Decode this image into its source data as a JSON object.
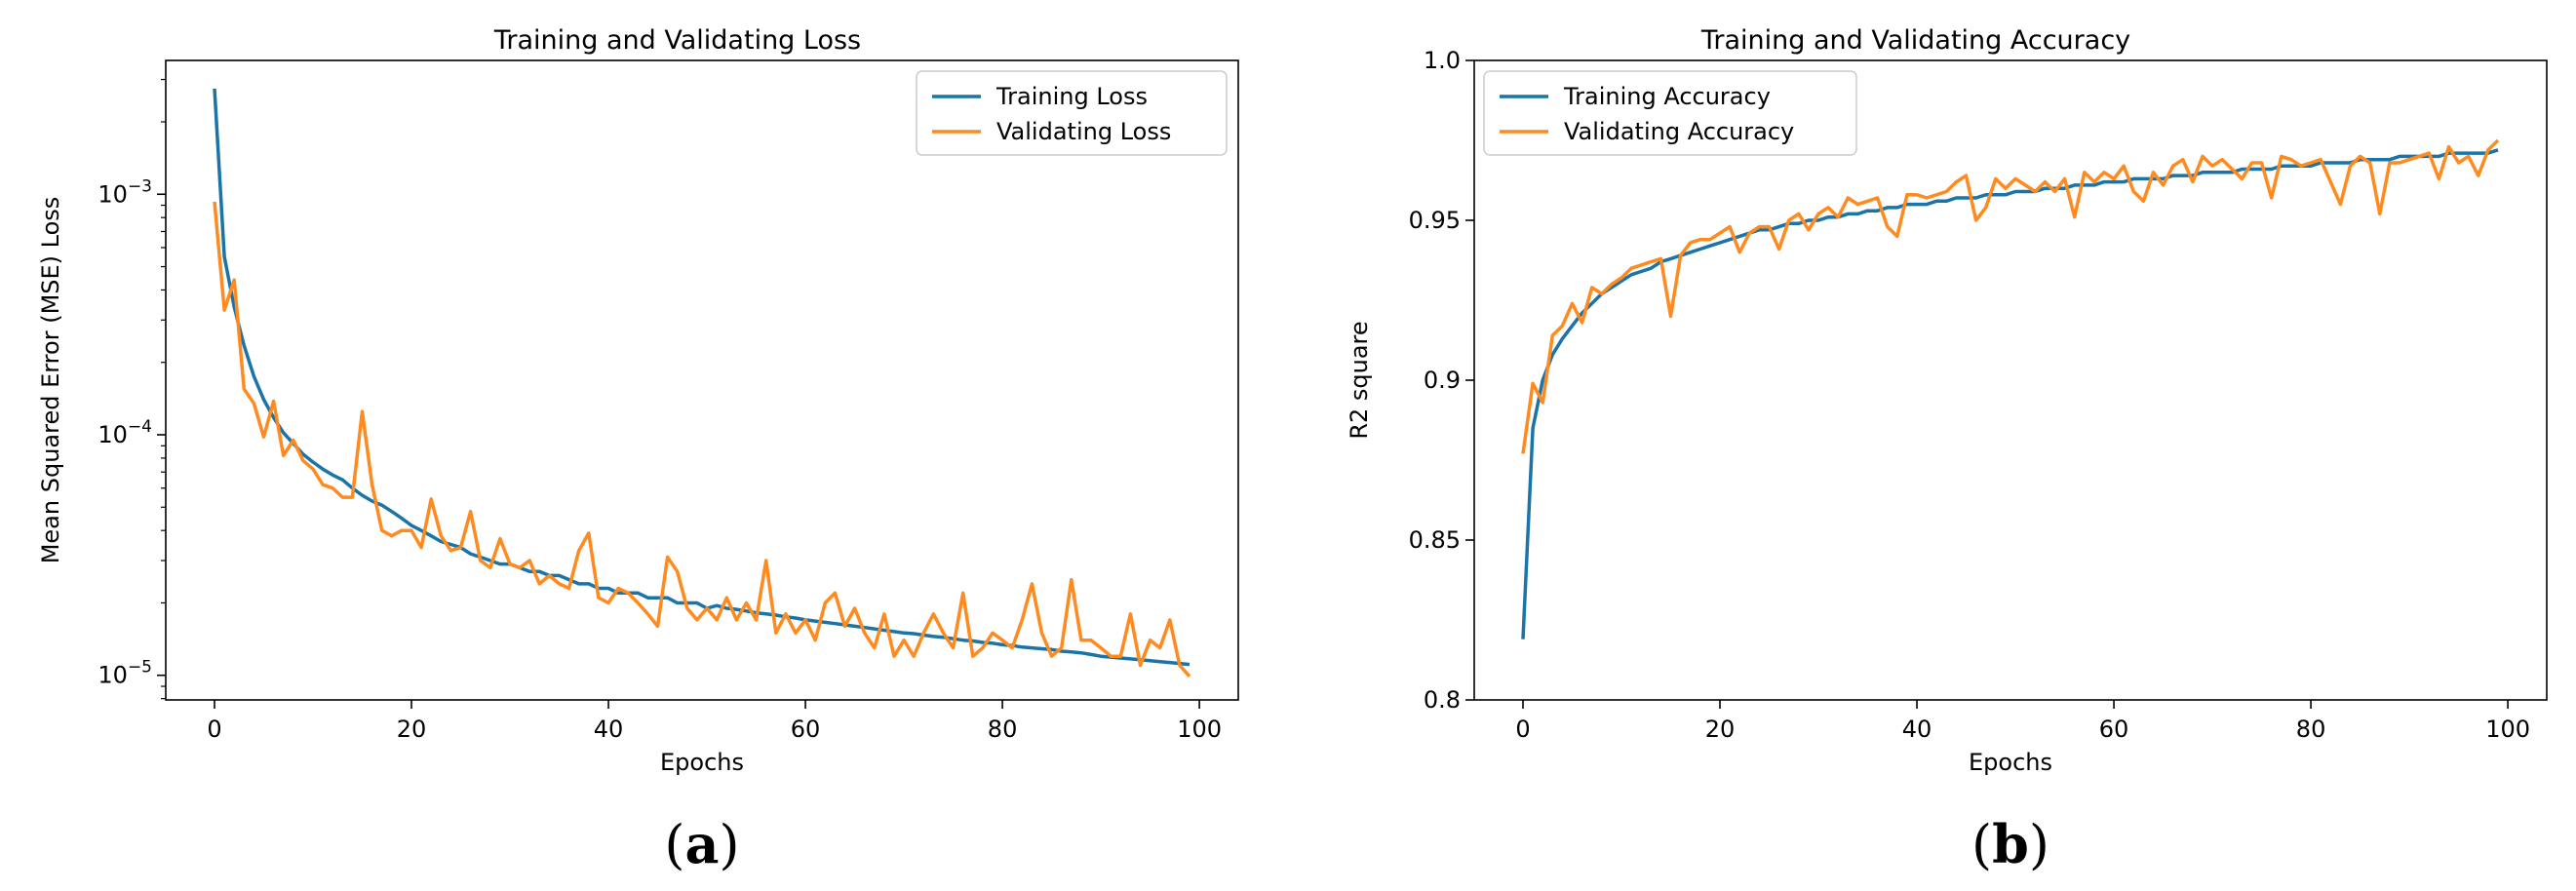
{
  "colors": {
    "training": "#1a74a8",
    "validating": "#ff8a1f"
  },
  "panel_labels": [
    "a",
    "b"
  ],
  "chart_data": [
    {
      "type": "line",
      "title": "Training and Validating Loss",
      "xlabel": "Epochs",
      "ylabel": "Mean Squared Error (MSE) Loss",
      "yscale": "log",
      "xlim": [
        -4.95,
        103.95
      ],
      "ylim": [
        7.9e-06,
        0.0036
      ],
      "xticks": [
        0,
        20,
        40,
        60,
        80,
        100
      ],
      "xtick_labels": [
        "0",
        "20",
        "40",
        "60",
        "80",
        "100"
      ],
      "yticks": [
        0.001,
        0.0001,
        1e-05
      ],
      "ytick_labels": [
        {
          "base": "10",
          "exp": "−3"
        },
        {
          "base": "10",
          "exp": "−4"
        },
        {
          "base": "10",
          "exp": "−5"
        }
      ],
      "legend_position": "upper-right",
      "x": [
        0,
        1,
        2,
        3,
        4,
        5,
        6,
        7,
        8,
        9,
        10,
        11,
        12,
        13,
        14,
        15,
        16,
        17,
        18,
        19,
        20,
        21,
        22,
        23,
        24,
        25,
        26,
        27,
        28,
        29,
        30,
        31,
        32,
        33,
        34,
        35,
        36,
        37,
        38,
        39,
        40,
        41,
        42,
        43,
        44,
        45,
        46,
        47,
        48,
        49,
        50,
        51,
        52,
        53,
        54,
        55,
        56,
        57,
        58,
        59,
        60,
        61,
        62,
        63,
        64,
        65,
        66,
        67,
        68,
        69,
        70,
        71,
        72,
        73,
        74,
        75,
        76,
        77,
        78,
        79,
        80,
        81,
        82,
        83,
        84,
        85,
        86,
        87,
        88,
        89,
        90,
        91,
        92,
        93,
        94,
        95,
        96,
        97,
        98,
        99
      ],
      "series": [
        {
          "name": "Training Loss",
          "color": "#1a74a8",
          "values": [
            0.00275,
            0.00055,
            0.00034,
            0.000235,
            0.000175,
            0.00014,
            0.000118,
            0.000102,
            9.2e-05,
            8.3e-05,
            7.7e-05,
            7.2e-05,
            6.8e-05,
            6.5e-05,
            6e-05,
            5.6e-05,
            5.3e-05,
            5.1e-05,
            4.8e-05,
            4.5e-05,
            4.2e-05,
            4e-05,
            3.8e-05,
            3.6e-05,
            3.5e-05,
            3.4e-05,
            3.2e-05,
            3.1e-05,
            3e-05,
            2.9e-05,
            2.9e-05,
            2.8e-05,
            2.7e-05,
            2.7e-05,
            2.6e-05,
            2.6e-05,
            2.5e-05,
            2.4e-05,
            2.4e-05,
            2.3e-05,
            2.3e-05,
            2.2e-05,
            2.2e-05,
            2.2e-05,
            2.1e-05,
            2.1e-05,
            2.1e-05,
            2e-05,
            2e-05,
            2e-05,
            1.9e-05,
            1.95e-05,
            1.9e-05,
            1.88e-05,
            1.85e-05,
            1.82e-05,
            1.8e-05,
            1.78e-05,
            1.75e-05,
            1.73e-05,
            1.7e-05,
            1.68e-05,
            1.66e-05,
            1.64e-05,
            1.62e-05,
            1.6e-05,
            1.58e-05,
            1.56e-05,
            1.54e-05,
            1.52e-05,
            1.5e-05,
            1.49e-05,
            1.47e-05,
            1.45e-05,
            1.44e-05,
            1.42e-05,
            1.4e-05,
            1.39e-05,
            1.37e-05,
            1.36e-05,
            1.34e-05,
            1.33e-05,
            1.31e-05,
            1.3e-05,
            1.29e-05,
            1.28e-05,
            1.26e-05,
            1.25e-05,
            1.24e-05,
            1.22e-05,
            1.2e-05,
            1.19e-05,
            1.18e-05,
            1.17e-05,
            1.16e-05,
            1.15e-05,
            1.14e-05,
            1.13e-05,
            1.12e-05,
            1.11e-05
          ]
        },
        {
          "name": "Validating Loss",
          "color": "#ff8a1f",
          "values": [
            0.00093,
            0.00033,
            0.00044,
            0.000155,
            0.000135,
            9.8e-05,
            0.000138,
            8.2e-05,
            9.5e-05,
            7.8e-05,
            7.2e-05,
            6.2e-05,
            6e-05,
            5.5e-05,
            5.5e-05,
            0.000125,
            6.2e-05,
            4e-05,
            3.8e-05,
            4e-05,
            4e-05,
            3.4e-05,
            5.4e-05,
            3.8e-05,
            3.3e-05,
            3.4e-05,
            4.8e-05,
            3e-05,
            2.8e-05,
            3.7e-05,
            2.9e-05,
            2.8e-05,
            3e-05,
            2.4e-05,
            2.6e-05,
            2.4e-05,
            2.3e-05,
            3.3e-05,
            3.9e-05,
            2.1e-05,
            2e-05,
            2.3e-05,
            2.2e-05,
            2e-05,
            1.8e-05,
            1.6e-05,
            3.1e-05,
            2.7e-05,
            1.9e-05,
            1.7e-05,
            1.9e-05,
            1.7e-05,
            2.1e-05,
            1.7e-05,
            2e-05,
            1.7e-05,
            3e-05,
            1.5e-05,
            1.8e-05,
            1.5e-05,
            1.7e-05,
            1.4e-05,
            2e-05,
            2.2e-05,
            1.6e-05,
            1.9e-05,
            1.5e-05,
            1.3e-05,
            1.8e-05,
            1.2e-05,
            1.4e-05,
            1.2e-05,
            1.5e-05,
            1.8e-05,
            1.5e-05,
            1.3e-05,
            2.2e-05,
            1.2e-05,
            1.3e-05,
            1.5e-05,
            1.4e-05,
            1.3e-05,
            1.7e-05,
            2.4e-05,
            1.5e-05,
            1.2e-05,
            1.3e-05,
            2.5e-05,
            1.4e-05,
            1.4e-05,
            1.3e-05,
            1.2e-05,
            1.2e-05,
            1.8e-05,
            1.1e-05,
            1.4e-05,
            1.3e-05,
            1.7e-05,
            1.1e-05,
            9.9e-06
          ]
        }
      ]
    },
    {
      "type": "line",
      "title": "Training and Validating Accuracy",
      "xlabel": "Epochs",
      "ylabel": "R2 square",
      "yscale": "linear",
      "xlim": [
        -4.95,
        103.95
      ],
      "ylim": [
        0.8,
        1.0
      ],
      "xticks": [
        0,
        20,
        40,
        60,
        80,
        100
      ],
      "xtick_labels": [
        "0",
        "20",
        "40",
        "60",
        "80",
        "100"
      ],
      "yticks": [
        0.8,
        0.85,
        0.9,
        0.95,
        1.0
      ],
      "ytick_labels": [
        "0.8",
        "0.85",
        "0.9",
        "0.95",
        "1.0"
      ],
      "legend_position": "upper-left",
      "x": [
        0,
        1,
        2,
        3,
        4,
        5,
        6,
        7,
        8,
        9,
        10,
        11,
        12,
        13,
        14,
        15,
        16,
        17,
        18,
        19,
        20,
        21,
        22,
        23,
        24,
        25,
        26,
        27,
        28,
        29,
        30,
        31,
        32,
        33,
        34,
        35,
        36,
        37,
        38,
        39,
        40,
        41,
        42,
        43,
        44,
        45,
        46,
        47,
        48,
        49,
        50,
        51,
        52,
        53,
        54,
        55,
        56,
        57,
        58,
        59,
        60,
        61,
        62,
        63,
        64,
        65,
        66,
        67,
        68,
        69,
        70,
        71,
        72,
        73,
        74,
        75,
        76,
        77,
        78,
        79,
        80,
        81,
        82,
        83,
        84,
        85,
        86,
        87,
        88,
        89,
        90,
        91,
        92,
        93,
        94,
        95,
        96,
        97,
        98,
        99
      ],
      "series": [
        {
          "name": "Training Accuracy",
          "color": "#1a74a8",
          "values": [
            0.819,
            0.885,
            0.9,
            0.908,
            0.913,
            0.917,
            0.921,
            0.924,
            0.927,
            0.929,
            0.931,
            0.933,
            0.934,
            0.935,
            0.937,
            0.938,
            0.939,
            0.94,
            0.941,
            0.942,
            0.943,
            0.944,
            0.945,
            0.946,
            0.947,
            0.947,
            0.948,
            0.949,
            0.949,
            0.95,
            0.95,
            0.951,
            0.951,
            0.952,
            0.952,
            0.953,
            0.953,
            0.954,
            0.954,
            0.955,
            0.955,
            0.955,
            0.956,
            0.956,
            0.957,
            0.957,
            0.957,
            0.958,
            0.958,
            0.958,
            0.959,
            0.959,
            0.959,
            0.96,
            0.96,
            0.96,
            0.961,
            0.961,
            0.961,
            0.962,
            0.962,
            0.962,
            0.963,
            0.963,
            0.963,
            0.963,
            0.964,
            0.964,
            0.964,
            0.965,
            0.965,
            0.965,
            0.965,
            0.966,
            0.966,
            0.966,
            0.966,
            0.967,
            0.967,
            0.967,
            0.967,
            0.968,
            0.968,
            0.968,
            0.968,
            0.969,
            0.969,
            0.969,
            0.969,
            0.97,
            0.97,
            0.97,
            0.97,
            0.97,
            0.971,
            0.971,
            0.971,
            0.971,
            0.971,
            0.972
          ]
        },
        {
          "name": "Validating Accuracy",
          "color": "#ff8a1f",
          "values": [
            0.877,
            0.899,
            0.893,
            0.914,
            0.917,
            0.924,
            0.918,
            0.929,
            0.927,
            0.93,
            0.932,
            0.935,
            0.936,
            0.937,
            0.938,
            0.92,
            0.939,
            0.943,
            0.944,
            0.944,
            0.946,
            0.948,
            0.94,
            0.946,
            0.948,
            0.948,
            0.941,
            0.95,
            0.952,
            0.947,
            0.952,
            0.954,
            0.951,
            0.957,
            0.955,
            0.956,
            0.957,
            0.948,
            0.945,
            0.958,
            0.958,
            0.957,
            0.958,
            0.959,
            0.962,
            0.964,
            0.95,
            0.954,
            0.963,
            0.96,
            0.963,
            0.961,
            0.959,
            0.962,
            0.959,
            0.963,
            0.951,
            0.965,
            0.962,
            0.965,
            0.963,
            0.967,
            0.959,
            0.956,
            0.965,
            0.961,
            0.967,
            0.969,
            0.962,
            0.97,
            0.967,
            0.969,
            0.966,
            0.963,
            0.968,
            0.968,
            0.957,
            0.97,
            0.969,
            0.967,
            0.968,
            0.969,
            0.962,
            0.955,
            0.967,
            0.97,
            0.968,
            0.952,
            0.968,
            0.968,
            0.969,
            0.97,
            0.971,
            0.963,
            0.973,
            0.968,
            0.97,
            0.964,
            0.972,
            0.975
          ]
        }
      ]
    }
  ]
}
